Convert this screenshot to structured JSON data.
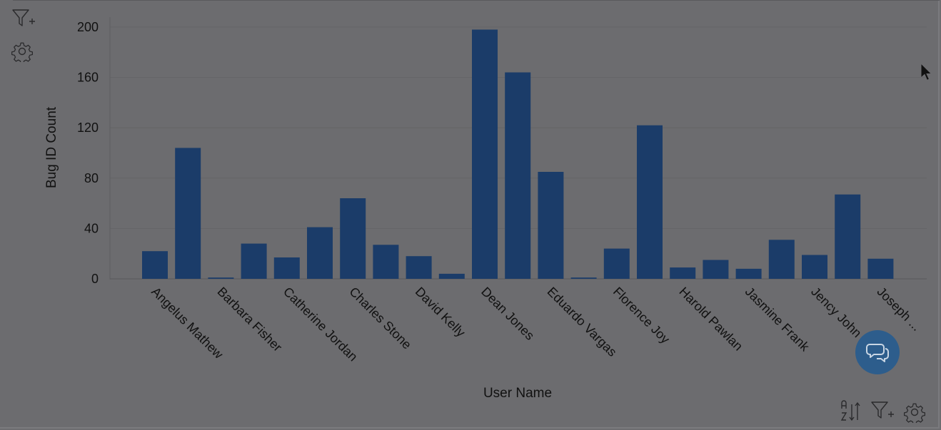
{
  "chart_data": {
    "type": "bar",
    "xlabel": "User Name",
    "ylabel": "Bug ID Count",
    "ylim": [
      0,
      200
    ],
    "yticks": [
      0,
      40,
      80,
      120,
      160,
      200
    ],
    "grid": true,
    "categories": [
      "Angelus Mathew",
      "",
      "Barbara Fisher",
      "",
      "Catherine Jordan",
      "",
      "Charles Stone",
      "",
      "David Kelly",
      "",
      "Dean Jones",
      "",
      "Eduardo Vargas",
      "",
      "Florence Joy",
      "",
      "Harold Pawlan",
      "",
      "Jasmine Frank",
      "",
      "Jency John",
      "",
      "Joseph ..."
    ],
    "values": [
      22,
      104,
      1,
      28,
      17,
      41,
      64,
      27,
      18,
      4,
      198,
      164,
      85,
      1,
      24,
      122,
      9,
      15,
      8,
      31,
      19,
      67,
      16
    ],
    "bar_color": "#1b3c69"
  },
  "icons": {
    "top_filter": "filter-plus-icon",
    "top_settings": "gear-icon",
    "sort": "sort-az-icon",
    "bottom_filter": "filter-plus-icon",
    "bottom_settings": "gear-icon",
    "chat": "chat-bubble-icon"
  }
}
